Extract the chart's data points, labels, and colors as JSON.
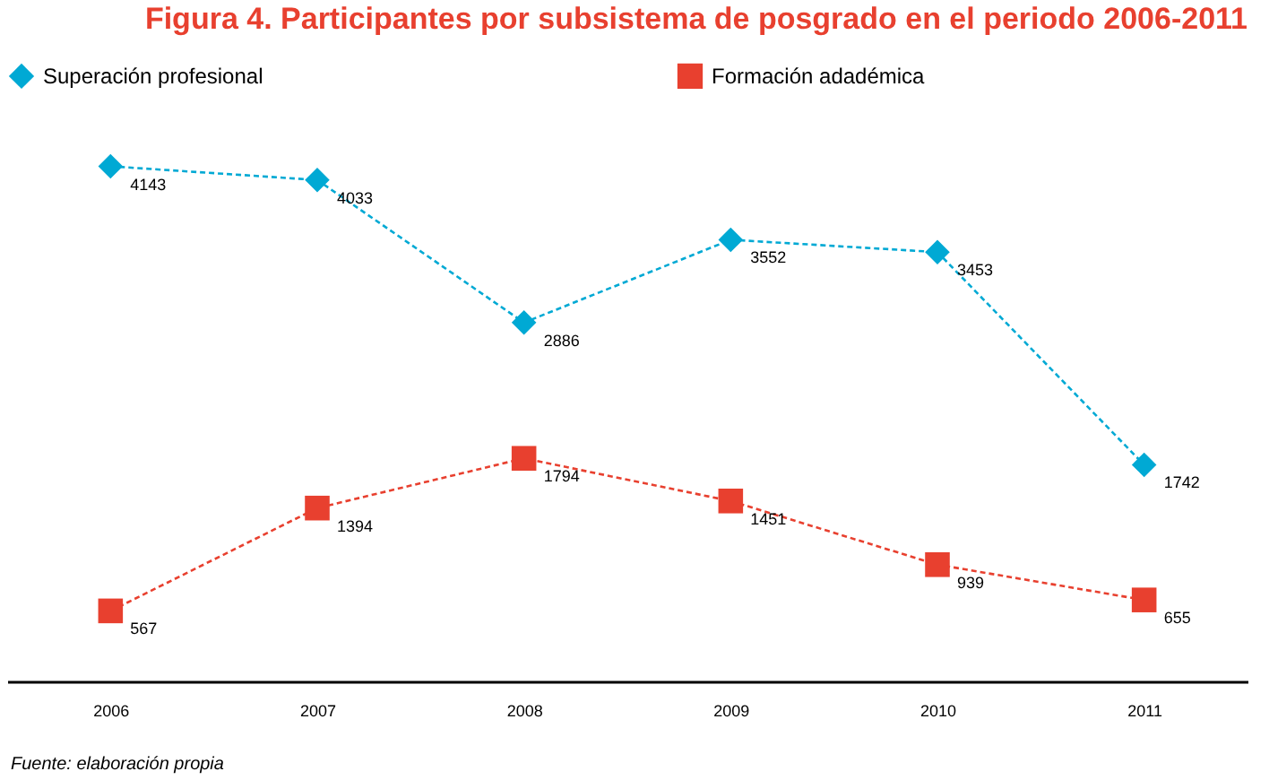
{
  "chart_data": {
    "type": "line",
    "title": "Figura 4. Participantes por subsistema de posgrado en el periodo 2006-2011",
    "categories": [
      "2006",
      "2007",
      "2008",
      "2009",
      "2010",
      "2011"
    ],
    "series": [
      {
        "name": "Superación profesional",
        "color": "#00a9d4",
        "marker": "diamond",
        "values": [
          4143,
          4033,
          2886,
          3552,
          3453,
          1742
        ]
      },
      {
        "name": "Formación adadémica",
        "color": "#e8402f",
        "marker": "square",
        "values": [
          567,
          1394,
          1794,
          1451,
          939,
          655
        ]
      }
    ],
    "line_style": "dashed",
    "data_labels": true,
    "legend": "top",
    "grid": false,
    "annotations": [
      "Fuente: elaboración propia"
    ]
  }
}
